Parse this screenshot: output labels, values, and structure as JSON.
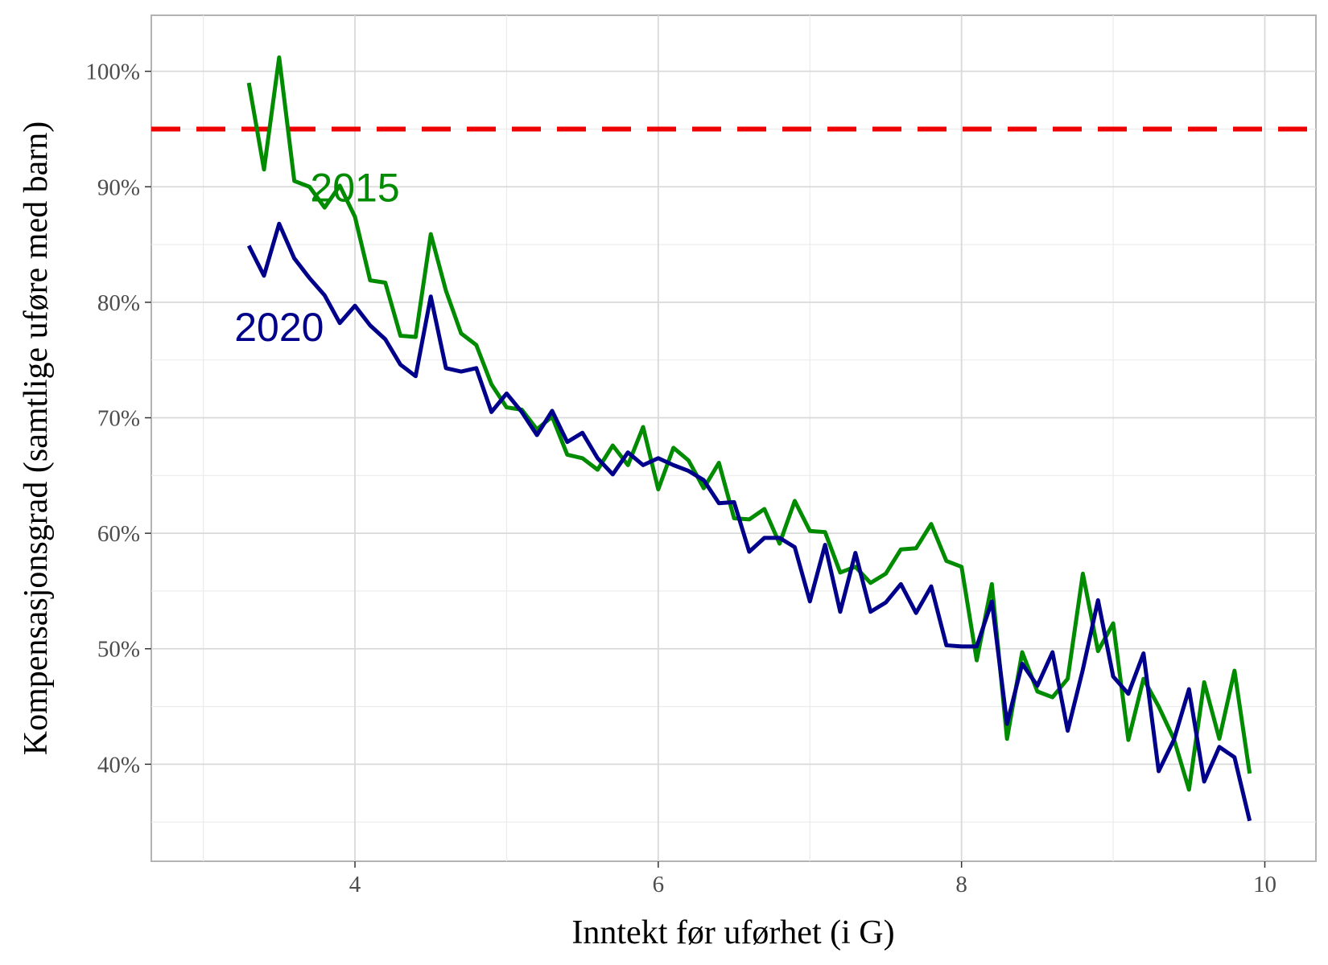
{
  "chart_data": {
    "type": "line",
    "x_label": "Inntekt før uførhet (i G)",
    "y_label": "Kompensasjonsgrad (samtlige uføre med barn)",
    "x": [
      3.3,
      3.4,
      3.5,
      3.6,
      3.7,
      3.8,
      3.9,
      4.0,
      4.1,
      4.2,
      4.3,
      4.4,
      4.5,
      4.6,
      4.7,
      4.8,
      4.9,
      5.0,
      5.1,
      5.2,
      5.3,
      5.4,
      5.5,
      5.6,
      5.7,
      5.8,
      5.9,
      6.0,
      6.1,
      6.2,
      6.3,
      6.4,
      6.5,
      6.6,
      6.7,
      6.8,
      6.9,
      7.0,
      7.1,
      7.2,
      7.3,
      7.4,
      7.5,
      7.6,
      7.7,
      7.8,
      7.9,
      8.0,
      8.1,
      8.2,
      8.3,
      8.4,
      8.5,
      8.6,
      8.7,
      8.8,
      8.9,
      9.0,
      9.1,
      9.2,
      9.3,
      9.4,
      9.5,
      9.6,
      9.7,
      9.8,
      9.9
    ],
    "series": [
      {
        "name": "2015",
        "color": "#008b00",
        "values": [
          99.0,
          91.5,
          101.2,
          90.5,
          90.0,
          88.2,
          90.1,
          87.4,
          81.9,
          81.7,
          77.1,
          77.0,
          85.9,
          81.0,
          77.3,
          76.3,
          72.9,
          70.9,
          70.7,
          69.0,
          70.1,
          66.8,
          66.5,
          65.5,
          67.6,
          65.9,
          69.2,
          63.8,
          67.4,
          66.3,
          63.9,
          66.1,
          61.3,
          61.2,
          62.1,
          59.1,
          62.8,
          60.2,
          60.1,
          56.6,
          57.1,
          55.7,
          56.5,
          58.6,
          58.7,
          60.8,
          57.6,
          57.1,
          49.0,
          55.6,
          42.2,
          49.7,
          46.3,
          45.8,
          47.4,
          56.5,
          49.8,
          52.2,
          42.1,
          47.4,
          45.0,
          42.2,
          37.8,
          47.1,
          42.2,
          48.1,
          39.2
        ]
      },
      {
        "name": "2020",
        "color": "#00008b",
        "values": [
          84.9,
          82.3,
          86.8,
          83.8,
          82.1,
          80.6,
          78.2,
          79.7,
          78.0,
          76.8,
          74.6,
          73.6,
          80.5,
          74.3,
          74.0,
          74.3,
          70.5,
          72.1,
          70.5,
          68.5,
          70.6,
          67.9,
          68.7,
          66.5,
          65.1,
          67.0,
          65.9,
          66.5,
          65.9,
          65.4,
          64.6,
          62.6,
          62.7,
          58.4,
          59.6,
          59.6,
          58.8,
          54.1,
          59.0,
          53.2,
          58.3,
          53.2,
          54.0,
          55.6,
          53.1,
          55.4,
          50.3,
          50.2,
          50.2,
          54.1,
          43.5,
          48.7,
          46.8,
          49.7,
          42.9,
          48.2,
          54.2,
          47.6,
          46.1,
          49.6,
          39.4,
          42.1,
          46.5,
          38.5,
          41.5,
          40.6,
          35.1
        ]
      }
    ],
    "annotations": [
      {
        "text": "2015",
        "x": 4.0,
        "y": 90.0,
        "color": "#008b00"
      },
      {
        "text": "2020",
        "x": 3.5,
        "y": 77.9,
        "color": "#00008b"
      }
    ],
    "hline": {
      "value": 95,
      "color": "#ee0000",
      "dashed": true
    },
    "xlim": [
      2.657,
      10.337
    ],
    "ylim": [
      31.6,
      104.85
    ],
    "xticks": [
      4,
      6,
      8,
      10
    ],
    "yticks": [
      {
        "value": 40,
        "label": "40%"
      },
      {
        "value": 50,
        "label": "50%"
      },
      {
        "value": 60,
        "label": "60%"
      },
      {
        "value": 70,
        "label": "70%"
      },
      {
        "value": 80,
        "label": "80%"
      },
      {
        "value": 90,
        "label": "90%"
      },
      {
        "value": 100,
        "label": "100%"
      }
    ],
    "grid": true,
    "minor_grid": true
  }
}
